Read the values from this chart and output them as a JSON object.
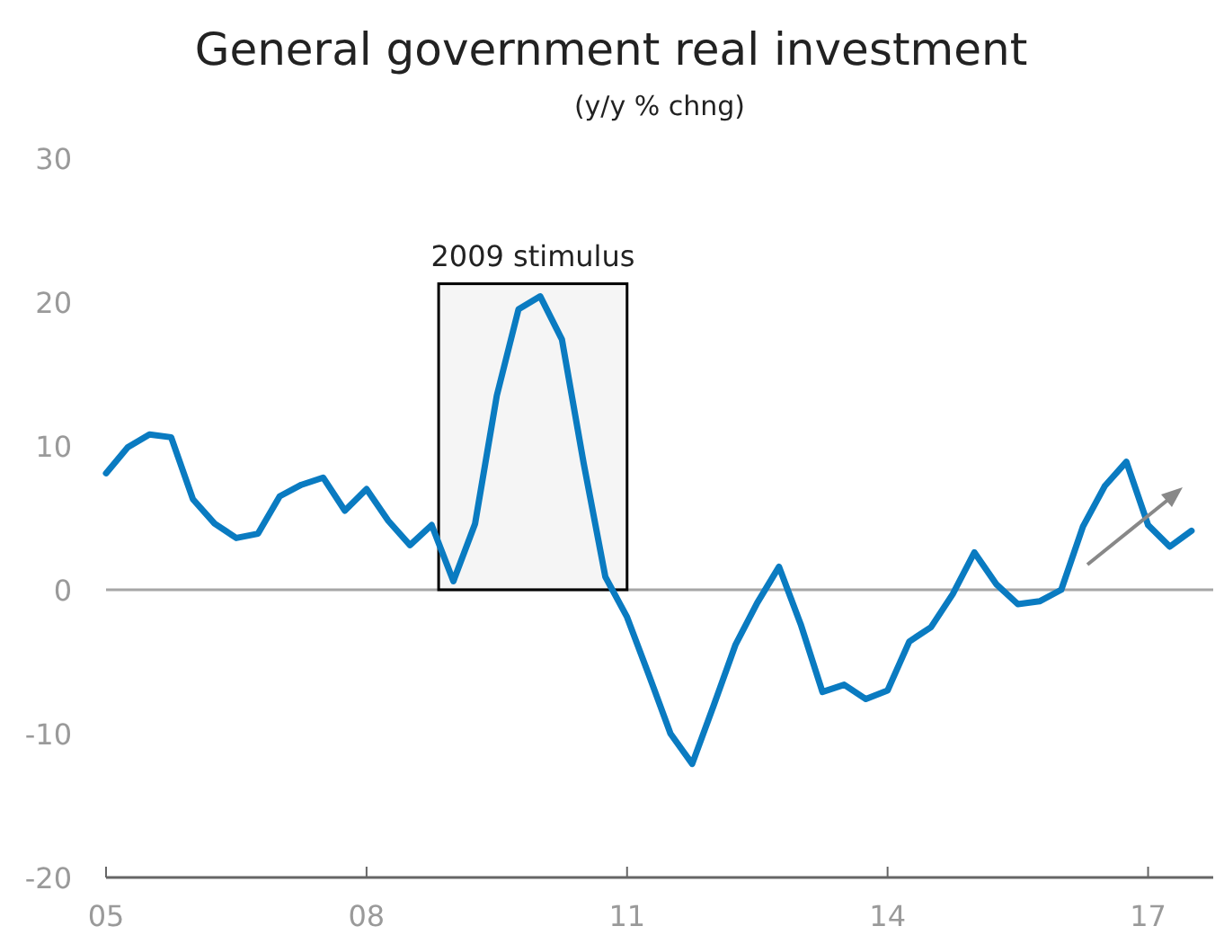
{
  "chart_data": {
    "type": "line",
    "title": "General government real investment",
    "subtitle": "(y/y % chng)",
    "x": [
      5,
      5.25,
      5.5,
      5.75,
      6,
      6.25,
      6.5,
      6.75,
      7,
      7.25,
      7.5,
      7.75,
      8,
      8.25,
      8.5,
      8.75,
      9,
      9.25,
      9.5,
      9.75,
      10,
      10.25,
      10.5,
      10.75,
      11,
      11.25,
      11.5,
      11.75,
      12,
      12.25,
      12.5,
      12.75,
      13,
      13.25,
      13.5,
      13.75,
      14,
      14.25,
      14.5,
      14.75,
      15,
      15.25,
      15.5,
      15.75,
      16,
      16.25,
      16.5,
      16.75,
      17,
      17.25,
      17.5
    ],
    "series": [
      {
        "color": "#0a7bc1",
        "values": [
          8.1,
          9.9,
          10.8,
          10.6,
          6.3,
          4.6,
          3.6,
          3.9,
          6.5,
          7.3,
          7.8,
          5.5,
          7.0,
          4.8,
          3.1,
          4.5,
          0.6,
          4.6,
          13.5,
          19.5,
          20.4,
          17.4,
          8.8,
          0.9,
          -1.9,
          -5.9,
          -10,
          -12.1,
          -8.0,
          -3.8,
          -0.9,
          1.6,
          -2.4,
          -7.1,
          -6.6,
          -7.6,
          -7.0,
          -3.6,
          -2.6,
          -0.3,
          2.6,
          0.4,
          -1.0,
          -0.8,
          0.0,
          4.4,
          7.2,
          8.9,
          4.5,
          3.0,
          4.1
        ]
      }
    ],
    "xlim": [
      5,
      17.75
    ],
    "xticks": [
      {
        "value": 5,
        "label": "05"
      },
      {
        "value": 8,
        "label": "08"
      },
      {
        "value": 11,
        "label": "11"
      },
      {
        "value": 14,
        "label": "14"
      },
      {
        "value": 17,
        "label": "17"
      }
    ],
    "ylim": [
      -20,
      30
    ],
    "yticks": [
      -20,
      -10,
      0,
      10,
      20,
      30
    ],
    "grid": false,
    "marker": "none",
    "line_style": "solid",
    "ref_lines": [
      {
        "axis": "y",
        "value": 0,
        "color": "#a6a6a6"
      }
    ],
    "bands": [
      {
        "axis": "x",
        "from": 8.83,
        "to": 11,
        "label": "2009 stimulus",
        "color": "#000000"
      }
    ]
  }
}
